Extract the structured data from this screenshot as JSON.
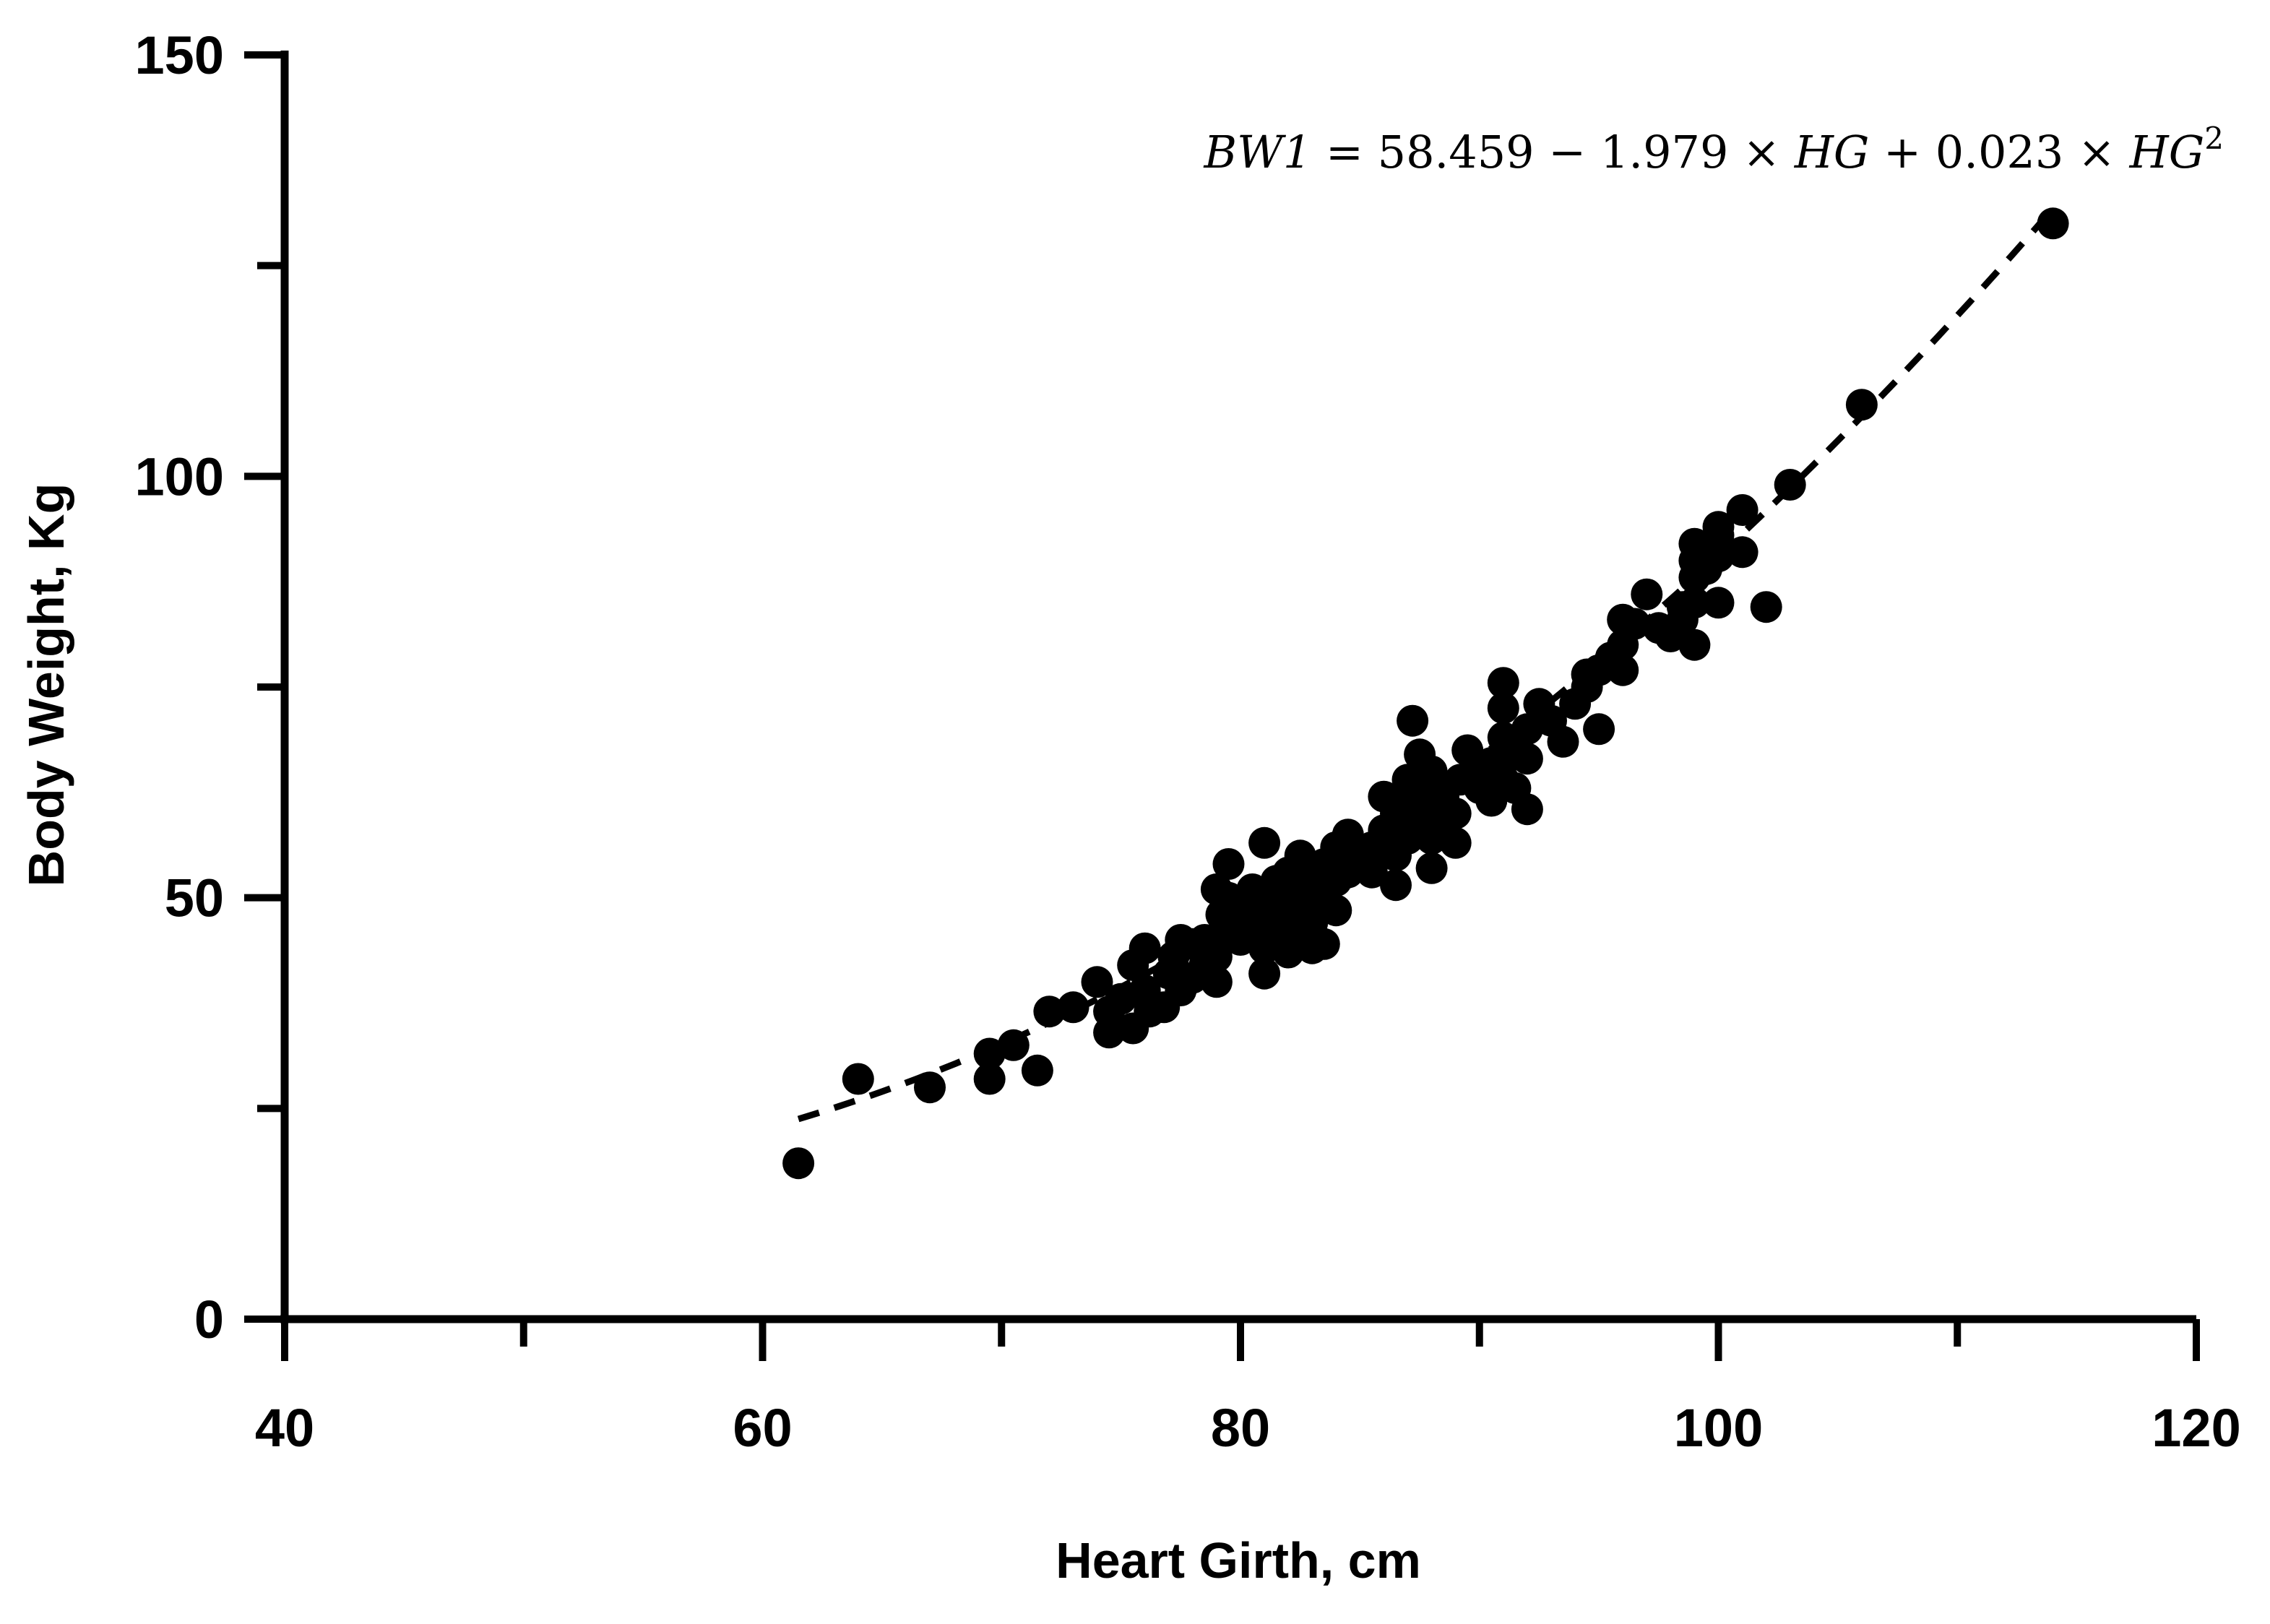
{
  "chart_data": {
    "type": "scatter",
    "xlabel": "Heart Girth, cm",
    "ylabel": "Body Weight, Kg",
    "xlim": [
      40,
      120
    ],
    "ylim": [
      0,
      150
    ],
    "x_ticks": [
      40,
      60,
      80,
      100,
      120
    ],
    "x_minor_ticks": [
      50,
      70,
      90,
      110
    ],
    "y_ticks": [
      0,
      50,
      100,
      150
    ],
    "y_minor_ticks": [
      25,
      75,
      125
    ],
    "grid": false,
    "marker_color": "#000000",
    "equation": {
      "lhs": "BW1",
      "eq": " = 58.459 − 1.979 × ",
      "v1": "HG",
      "mid": " + 0.023 × ",
      "v2": "HG",
      "exp": "2"
    },
    "fit": {
      "style": "dashed",
      "coefficients": [
        58.459,
        -1.979,
        0.023
      ],
      "x_range": [
        61.5,
        114
      ]
    },
    "points": [
      [
        61.5,
        18.5
      ],
      [
        64,
        28.5
      ],
      [
        67,
        27.5
      ],
      [
        69.5,
        31.5
      ],
      [
        69.5,
        28.5
      ],
      [
        70.5,
        32.5
      ],
      [
        71.5,
        29.5
      ],
      [
        72,
        36.5
      ],
      [
        73,
        37
      ],
      [
        74,
        40
      ],
      [
        74.5,
        36.5
      ],
      [
        74.5,
        34
      ],
      [
        75,
        38
      ],
      [
        75.5,
        34.5
      ],
      [
        75.5,
        42
      ],
      [
        76,
        39
      ],
      [
        76,
        44
      ],
      [
        76.2,
        36.5
      ],
      [
        76.8,
        37
      ],
      [
        77,
        41
      ],
      [
        77.2,
        43
      ],
      [
        77.5,
        39
      ],
      [
        77.5,
        45
      ],
      [
        78,
        40.5
      ],
      [
        78,
        44.5
      ],
      [
        78.5,
        42
      ],
      [
        78.5,
        45
      ],
      [
        79,
        40
      ],
      [
        79,
        43
      ],
      [
        79,
        51
      ],
      [
        79.2,
        48
      ],
      [
        79.5,
        46
      ],
      [
        79.5,
        50
      ],
      [
        79.5,
        54
      ],
      [
        80,
        45
      ],
      [
        80,
        49
      ],
      [
        80.5,
        47
      ],
      [
        80.5,
        51
      ],
      [
        81,
        41
      ],
      [
        81,
        44
      ],
      [
        81,
        48
      ],
      [
        81,
        56.5
      ],
      [
        81.2,
        50
      ],
      [
        81.5,
        46
      ],
      [
        81.5,
        52
      ],
      [
        82,
        43.5
      ],
      [
        82,
        47
      ],
      [
        82,
        49
      ],
      [
        82,
        53
      ],
      [
        82.3,
        45
      ],
      [
        82.5,
        50
      ],
      [
        82.5,
        55
      ],
      [
        83,
        44
      ],
      [
        83,
        47
      ],
      [
        83,
        52
      ],
      [
        83.5,
        44.5
      ],
      [
        83.5,
        50
      ],
      [
        83.5,
        54
      ],
      [
        84,
        48.5
      ],
      [
        84,
        52
      ],
      [
        84,
        56
      ],
      [
        84.5,
        53
      ],
      [
        84.5,
        57.5
      ],
      [
        85,
        55
      ],
      [
        85.5,
        53
      ],
      [
        85.5,
        56
      ],
      [
        86,
        58
      ],
      [
        86,
        62
      ],
      [
        86.5,
        51.5
      ],
      [
        86.5,
        55
      ],
      [
        86.5,
        60
      ],
      [
        87,
        57
      ],
      [
        87,
        61
      ],
      [
        87,
        64
      ],
      [
        87.2,
        71
      ],
      [
        87.5,
        59
      ],
      [
        87.5,
        63
      ],
      [
        87.5,
        67
      ],
      [
        88,
        53.5
      ],
      [
        88,
        57
      ],
      [
        88,
        61
      ],
      [
        88,
        65
      ],
      [
        88.5,
        58
      ],
      [
        88.5,
        62
      ],
      [
        89,
        56.5
      ],
      [
        89,
        60
      ],
      [
        89.2,
        64
      ],
      [
        89.5,
        67.5
      ],
      [
        90,
        63
      ],
      [
        90.2,
        65.5
      ],
      [
        90.5,
        61.5
      ],
      [
        90.5,
        66
      ],
      [
        91,
        64
      ],
      [
        91,
        69
      ],
      [
        91,
        72.5
      ],
      [
        91,
        75.5
      ],
      [
        91.5,
        63
      ],
      [
        91.5,
        67
      ],
      [
        92,
        60.5
      ],
      [
        92,
        66.5
      ],
      [
        92,
        70
      ],
      [
        92.5,
        73
      ],
      [
        93,
        71
      ],
      [
        93.5,
        68.5
      ],
      [
        94,
        73
      ],
      [
        94.5,
        75
      ],
      [
        94.5,
        76.5
      ],
      [
        95,
        70
      ],
      [
        95,
        77
      ],
      [
        95.5,
        78.5
      ],
      [
        96,
        77
      ],
      [
        96,
        80
      ],
      [
        96,
        83
      ],
      [
        96.5,
        82.5
      ],
      [
        97,
        86
      ],
      [
        97.5,
        82
      ],
      [
        98,
        81
      ],
      [
        98.5,
        84.5
      ],
      [
        98.5,
        83
      ],
      [
        99,
        80
      ],
      [
        99,
        85
      ],
      [
        99,
        88
      ],
      [
        99,
        90
      ],
      [
        99,
        92
      ],
      [
        99.5,
        89
      ],
      [
        100,
        85
      ],
      [
        100,
        90.5
      ],
      [
        100,
        93
      ],
      [
        100,
        94
      ],
      [
        101,
        91
      ],
      [
        101,
        96
      ],
      [
        102,
        84.5
      ],
      [
        103,
        99
      ],
      [
        106,
        108.5
      ],
      [
        114,
        130
      ]
    ]
  }
}
